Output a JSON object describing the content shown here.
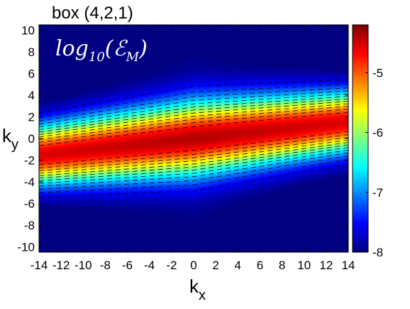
{
  "chart_data": {
    "type": "heatmap",
    "title": "box (4,2,1)",
    "annotation": {
      "main": "log",
      "sub1": "10",
      "paren_open": "(",
      "symbol": "ℰ",
      "sub2": "M",
      "paren_close": ")"
    },
    "xlabel": {
      "main": "k",
      "sub": "x"
    },
    "ylabel": {
      "main": "k",
      "sub": "y"
    },
    "xlim": [
      -14,
      14
    ],
    "ylim": [
      -10.5,
      10.5
    ],
    "xticks": [
      -14,
      -12,
      -10,
      -8,
      -6,
      -4,
      -2,
      0,
      2,
      4,
      6,
      8,
      10,
      12,
      14
    ],
    "yticks": [
      -10,
      -8,
      -6,
      -4,
      -2,
      0,
      2,
      4,
      6,
      8,
      10
    ],
    "colorbar": {
      "min": -8,
      "max": -4.2,
      "ticks": [
        -8,
        -7,
        -6,
        -5
      ],
      "colormap": "jet"
    },
    "ridge": {
      "slope": 0.11,
      "intercept": 0.0,
      "half_width_near_x": 4.2,
      "half_width_far_x": 3.4
    },
    "field": {
      "peak": -4.4,
      "floor": -8.0
    },
    "contour_levels": [
      -7.5,
      -7.25,
      -7.0,
      -6.75,
      -6.5,
      -6.25,
      -6.0,
      -5.75,
      -5.5,
      -5.25,
      -5.0,
      -4.75
    ]
  }
}
